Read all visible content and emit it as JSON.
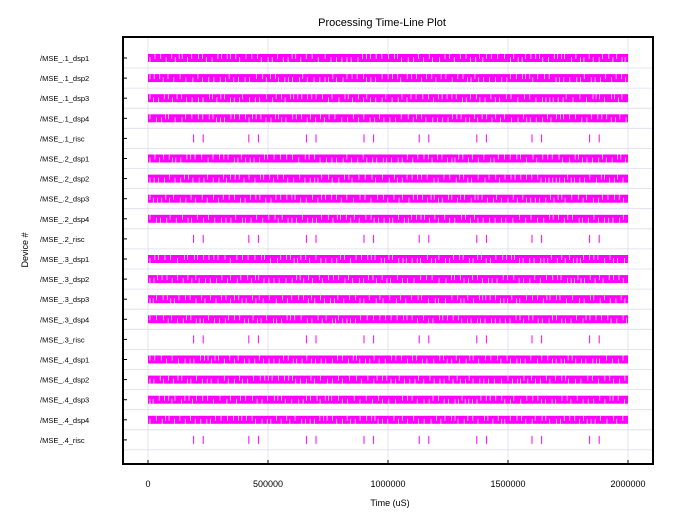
{
  "chart_data": {
    "type": "timeline",
    "title": "Processing Time-Line Plot",
    "xlabel": "Time (uS)",
    "ylabel": "Device #",
    "xlim": [
      -100000,
      2100000
    ],
    "x_ticks": [
      0,
      500000,
      1000000,
      1500000,
      2000000
    ],
    "x_tick_labels": [
      "0",
      "500000",
      "1000000",
      "1500000",
      "2000000"
    ],
    "grid": true,
    "mark_color": "#ff00ff",
    "devices": [
      "/MSE_.1_dsp1",
      "/MSE_.1_dsp2",
      "/MSE_.1_dsp3",
      "/MSE_.1_dsp4",
      "/MSE_.1_risc",
      "/MSE_.2_dsp1",
      "/MSE_.2_dsp2",
      "/MSE_.2_dsp3",
      "/MSE_.2_dsp4",
      "/MSE_.2_risc",
      "/MSE_.3_dsp1",
      "/MSE_.3_dsp2",
      "/MSE_.3_dsp3",
      "/MSE_.3_dsp4",
      "/MSE_.3_risc",
      "/MSE_.4_dsp1",
      "/MSE_.4_dsp2",
      "/MSE_.4_dsp3",
      "/MSE_.4_dsp4",
      "/MSE_.4_risc"
    ],
    "dsp_activity_range": [
      0,
      2000000
    ],
    "risc_event_times": [
      [
        190000,
        230000,
        420000,
        460000,
        660000,
        700000,
        900000,
        940000,
        1130000,
        1170000,
        1370000,
        1410000,
        1600000,
        1640000,
        1840000,
        1880000
      ],
      [
        190000,
        230000,
        420000,
        460000,
        660000,
        700000,
        900000,
        940000,
        1130000,
        1170000,
        1370000,
        1410000,
        1600000,
        1640000,
        1840000,
        1880000
      ],
      [
        190000,
        230000,
        420000,
        460000,
        660000,
        700000,
        900000,
        940000,
        1130000,
        1170000,
        1370000,
        1410000,
        1600000,
        1640000,
        1840000,
        1880000
      ],
      [
        190000,
        230000,
        420000,
        460000,
        660000,
        700000,
        900000,
        940000,
        1130000,
        1170000,
        1370000,
        1410000,
        1600000,
        1640000,
        1840000,
        1880000
      ]
    ]
  }
}
